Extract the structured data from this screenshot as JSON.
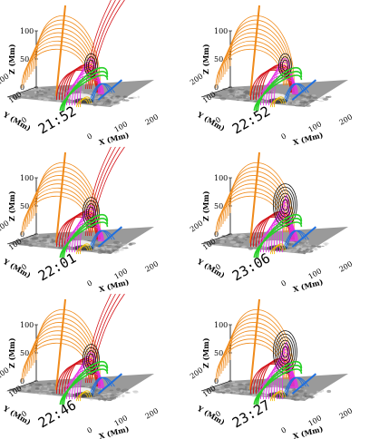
{
  "axes": {
    "z_label": "Z (Mm)",
    "y_label": "Y (Mm)",
    "x_label": "X (Mm)",
    "z_ticks": [
      "100",
      "50",
      "0"
    ],
    "y_ticks": [
      "200",
      "100",
      "0"
    ],
    "x_ticks": [
      "0",
      "100",
      "200"
    ]
  },
  "colors": {
    "orange": "#f08a1a",
    "red": "#d4141a",
    "magenta": "#e630e6",
    "green": "#28d028",
    "blue": "#1e6fe0",
    "black": "#111111",
    "yellow": "#f2c200",
    "plane": "#9a9a9a"
  },
  "panels": [
    {
      "time": "21:52",
      "flux_rope": "small"
    },
    {
      "time": "22:52",
      "flux_rope": "small"
    },
    {
      "time": "22:01",
      "flux_rope": "medium"
    },
    {
      "time": "23:06",
      "flux_rope": "large"
    },
    {
      "time": "22:46",
      "flux_rope": "medium"
    },
    {
      "time": "23:27",
      "flux_rope": "large"
    }
  ]
}
